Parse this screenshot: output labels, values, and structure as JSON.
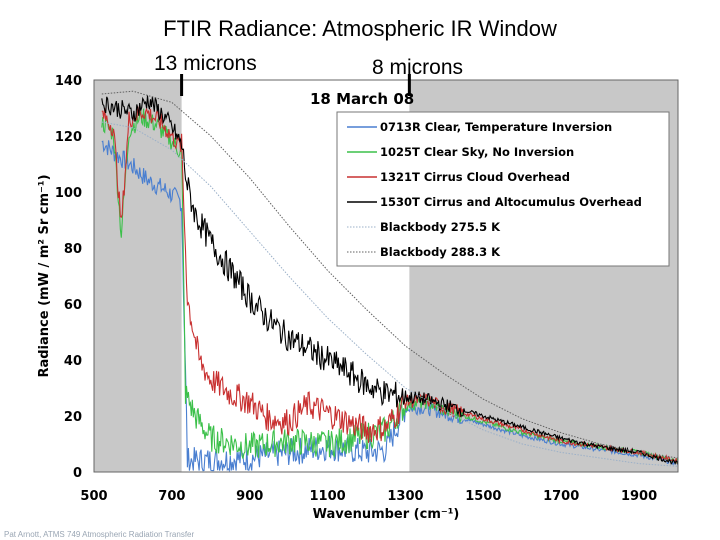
{
  "slide": {
    "title": "FTIR Radiance: Atmospheric IR Window",
    "band_long_label": "13 microns",
    "band_short_label": "8 microns",
    "footer": "Pat Arnott, ATMS 749 Atmospheric Radiation Transfer"
  },
  "chart_data": {
    "type": "line",
    "annotation": "18 March 08",
    "xlabel": "Wavenumber (cm⁻¹)",
    "ylabel": "Radiance (mW / m² Sr cm⁻¹)",
    "xlim": [
      500,
      2000
    ],
    "ylim": [
      0,
      140
    ],
    "x_ticks": [
      500,
      700,
      900,
      1100,
      1300,
      1500,
      1700,
      1900
    ],
    "y_ticks": [
      0,
      20,
      40,
      60,
      80,
      100,
      120,
      140
    ],
    "shaded_ranges": [
      [
        500,
        725
      ],
      [
        1310,
        2000
      ]
    ],
    "band_markers": [
      {
        "wavenumber": 725,
        "label": "13 microns"
      },
      {
        "wavenumber": 1310,
        "label": "8 microns"
      }
    ],
    "series": [
      {
        "name": "0713R Clear, Temperature Inversion",
        "color": "#4a7fd0",
        "points": [
          [
            520,
            118
          ],
          [
            560,
            113
          ],
          [
            600,
            109
          ],
          [
            640,
            104
          ],
          [
            680,
            101
          ],
          [
            720,
            97
          ],
          [
            725,
            96
          ],
          [
            740,
            4
          ],
          [
            800,
            4
          ],
          [
            900,
            5
          ],
          [
            1000,
            7
          ],
          [
            1100,
            9
          ],
          [
            1200,
            7
          ],
          [
            1250,
            8
          ],
          [
            1300,
            23
          ],
          [
            1350,
            23
          ],
          [
            1400,
            21
          ],
          [
            1500,
            17
          ],
          [
            1600,
            13
          ],
          [
            1700,
            10
          ],
          [
            1800,
            8
          ],
          [
            1900,
            6
          ],
          [
            2000,
            3
          ]
        ]
      },
      {
        "name": "1025T Clear Sky, No Inversion",
        "color": "#3cc04a",
        "points": [
          [
            520,
            125
          ],
          [
            550,
            121
          ],
          [
            570,
            85
          ],
          [
            590,
            122
          ],
          [
            620,
            127
          ],
          [
            660,
            124
          ],
          [
            700,
            118
          ],
          [
            725,
            114
          ],
          [
            735,
            28
          ],
          [
            760,
            20
          ],
          [
            800,
            12
          ],
          [
            900,
            9
          ],
          [
            1000,
            11
          ],
          [
            1100,
            10
          ],
          [
            1200,
            13
          ],
          [
            1250,
            15
          ],
          [
            1300,
            24
          ],
          [
            1350,
            25
          ],
          [
            1400,
            22
          ],
          [
            1500,
            18
          ],
          [
            1600,
            14
          ],
          [
            1700,
            11
          ],
          [
            1800,
            9
          ],
          [
            1900,
            7
          ],
          [
            2000,
            4
          ]
        ]
      },
      {
        "name": "1321T Cirrus Cloud Overhead",
        "color": "#c83030",
        "points": [
          [
            520,
            128
          ],
          [
            550,
            123
          ],
          [
            570,
            88
          ],
          [
            590,
            126
          ],
          [
            630,
            129
          ],
          [
            670,
            125
          ],
          [
            700,
            120
          ],
          [
            725,
            116
          ],
          [
            740,
            62
          ],
          [
            770,
            40
          ],
          [
            800,
            33
          ],
          [
            850,
            28
          ],
          [
            900,
            25
          ],
          [
            950,
            19
          ],
          [
            1000,
            18
          ],
          [
            1050,
            24
          ],
          [
            1100,
            21
          ],
          [
            1150,
            18
          ],
          [
            1200,
            15
          ],
          [
            1250,
            16
          ],
          [
            1300,
            25
          ],
          [
            1350,
            26
          ],
          [
            1400,
            23
          ],
          [
            1500,
            19
          ],
          [
            1600,
            15
          ],
          [
            1700,
            11
          ],
          [
            1800,
            9
          ],
          [
            1900,
            7
          ],
          [
            2000,
            4
          ]
        ]
      },
      {
        "name": "1530T Cirrus and Altocumulus Overhead",
        "color": "#000000",
        "points": [
          [
            520,
            132
          ],
          [
            560,
            130
          ],
          [
            600,
            128
          ],
          [
            640,
            133
          ],
          [
            680,
            127
          ],
          [
            700,
            123
          ],
          [
            725,
            117
          ],
          [
            740,
            102
          ],
          [
            760,
            92
          ],
          [
            800,
            82
          ],
          [
            850,
            72
          ],
          [
            900,
            62
          ],
          [
            950,
            54
          ],
          [
            1000,
            48
          ],
          [
            1050,
            44
          ],
          [
            1100,
            40
          ],
          [
            1150,
            36
          ],
          [
            1200,
            31
          ],
          [
            1250,
            28
          ],
          [
            1300,
            27
          ],
          [
            1350,
            26
          ],
          [
            1400,
            24
          ],
          [
            1500,
            20
          ],
          [
            1600,
            16
          ],
          [
            1700,
            12
          ],
          [
            1800,
            9
          ],
          [
            1900,
            7
          ],
          [
            2000,
            3
          ]
        ]
      },
      {
        "name": "Blackbody 275.5 K",
        "color": "#9bb0c8",
        "dotted": true,
        "points": [
          [
            520,
            125
          ],
          [
            600,
            123
          ],
          [
            700,
            115
          ],
          [
            800,
            102
          ],
          [
            900,
            86
          ],
          [
            1000,
            70
          ],
          [
            1100,
            55
          ],
          [
            1200,
            42
          ],
          [
            1300,
            30
          ],
          [
            1400,
            22
          ],
          [
            1500,
            15
          ],
          [
            1600,
            10
          ],
          [
            1700,
            7
          ],
          [
            1800,
            5
          ],
          [
            1900,
            3
          ],
          [
            2000,
            2
          ]
        ]
      },
      {
        "name": "Blackbody 288.3 K",
        "color": "#606060",
        "dotted": true,
        "points": [
          [
            520,
            135
          ],
          [
            600,
            136
          ],
          [
            700,
            132
          ],
          [
            800,
            120
          ],
          [
            900,
            105
          ],
          [
            1000,
            88
          ],
          [
            1100,
            72
          ],
          [
            1200,
            58
          ],
          [
            1300,
            45
          ],
          [
            1400,
            35
          ],
          [
            1500,
            26
          ],
          [
            1600,
            19
          ],
          [
            1700,
            14
          ],
          [
            1800,
            10
          ],
          [
            1900,
            7
          ],
          [
            2000,
            5
          ]
        ]
      }
    ]
  }
}
